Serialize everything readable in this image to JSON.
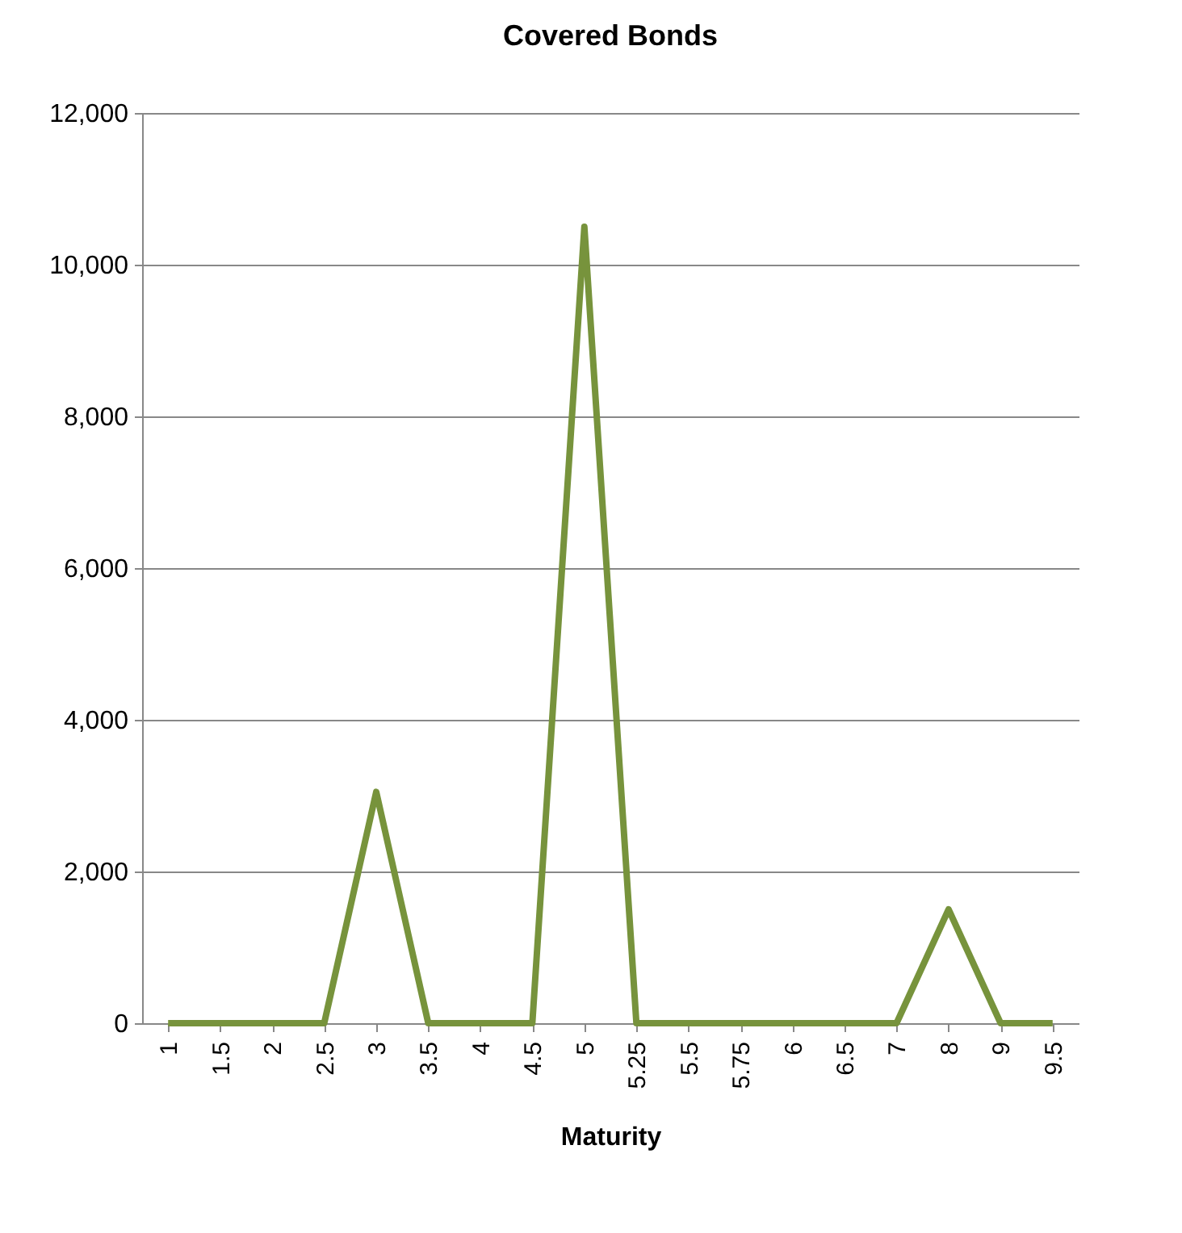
{
  "chart_data": {
    "type": "line",
    "title": "Covered Bonds",
    "xlabel": "Maturity",
    "categories": [
      "1",
      "1.5",
      "2",
      "2.5",
      "3",
      "3.5",
      "4",
      "4.5",
      "5",
      "5.25",
      "5.5",
      "5.75",
      "6",
      "6.5",
      "7",
      "8",
      "9",
      "9.5"
    ],
    "series": [
      {
        "color": "#77933c",
        "values": [
          0,
          0,
          0,
          0,
          3050,
          0,
          0,
          0,
          10500,
          0,
          0,
          0,
          0,
          0,
          0,
          1500,
          0,
          0
        ]
      }
    ],
    "ylim": [
      0,
      12000
    ],
    "yticks": [
      {
        "value": 0,
        "label": "0"
      },
      {
        "value": 2000,
        "label": "2,000"
      },
      {
        "value": 4000,
        "label": "4,000"
      },
      {
        "value": 6000,
        "label": "6,000"
      },
      {
        "value": 8000,
        "label": "8,000"
      },
      {
        "value": 10000,
        "label": "10,000"
      },
      {
        "value": 12000,
        "label": "12,000"
      }
    ],
    "grid": "y",
    "marker": "none",
    "line_style": "solid"
  }
}
